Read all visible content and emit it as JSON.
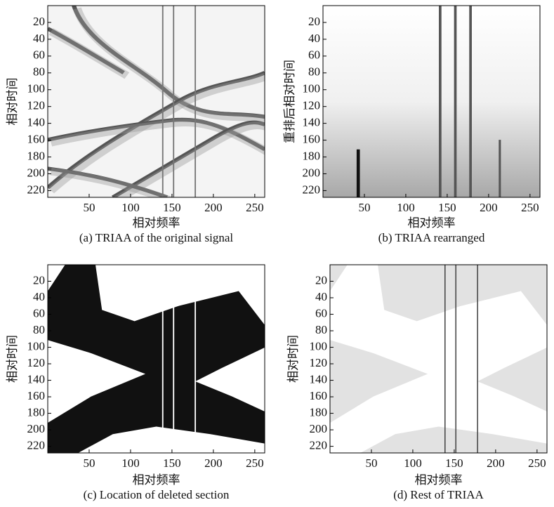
{
  "chart_data": [
    {
      "type": "image",
      "caption": "(a) TRIAA of the original signal",
      "x_label": "相对频率",
      "y_label": "相对时间",
      "xlim": [
        0,
        262
      ],
      "xticks": [
        50,
        100,
        150,
        200,
        250
      ],
      "ylim": [
        0,
        228
      ],
      "yticks": [
        20,
        40,
        60,
        80,
        100,
        120,
        140,
        160,
        180,
        200,
        220
      ],
      "y_inverted": true
    },
    {
      "type": "image",
      "caption": "(b) TRIAA rearranged",
      "x_label": "相对频率",
      "y_label": "重排后相对时间",
      "xlim": [
        0,
        262
      ],
      "xticks": [
        50,
        100,
        150,
        200,
        250
      ],
      "ylim": [
        0,
        228
      ],
      "yticks": [
        20,
        40,
        60,
        80,
        100,
        120,
        140,
        160,
        180,
        200,
        220
      ],
      "y_inverted": true
    },
    {
      "type": "image",
      "caption": "(c) Location of deleted section",
      "x_label": "相对频率",
      "y_label": "相对时间",
      "xlim": [
        0,
        262
      ],
      "xticks": [
        50,
        100,
        150,
        200,
        250
      ],
      "ylim": [
        0,
        228
      ],
      "yticks": [
        20,
        40,
        60,
        80,
        100,
        120,
        140,
        160,
        180,
        200,
        220
      ],
      "y_inverted": true
    },
    {
      "type": "image",
      "caption": "(d) Rest of TRIAA",
      "x_label": "相对频率",
      "y_label": "相对时间",
      "xlim": [
        0,
        262
      ],
      "xticks": [
        50,
        100,
        150,
        200,
        250
      ],
      "ylim": [
        0,
        228
      ],
      "yticks": [
        20,
        40,
        60,
        80,
        100,
        120,
        140,
        160,
        180,
        200,
        220
      ],
      "y_inverted": true
    }
  ]
}
